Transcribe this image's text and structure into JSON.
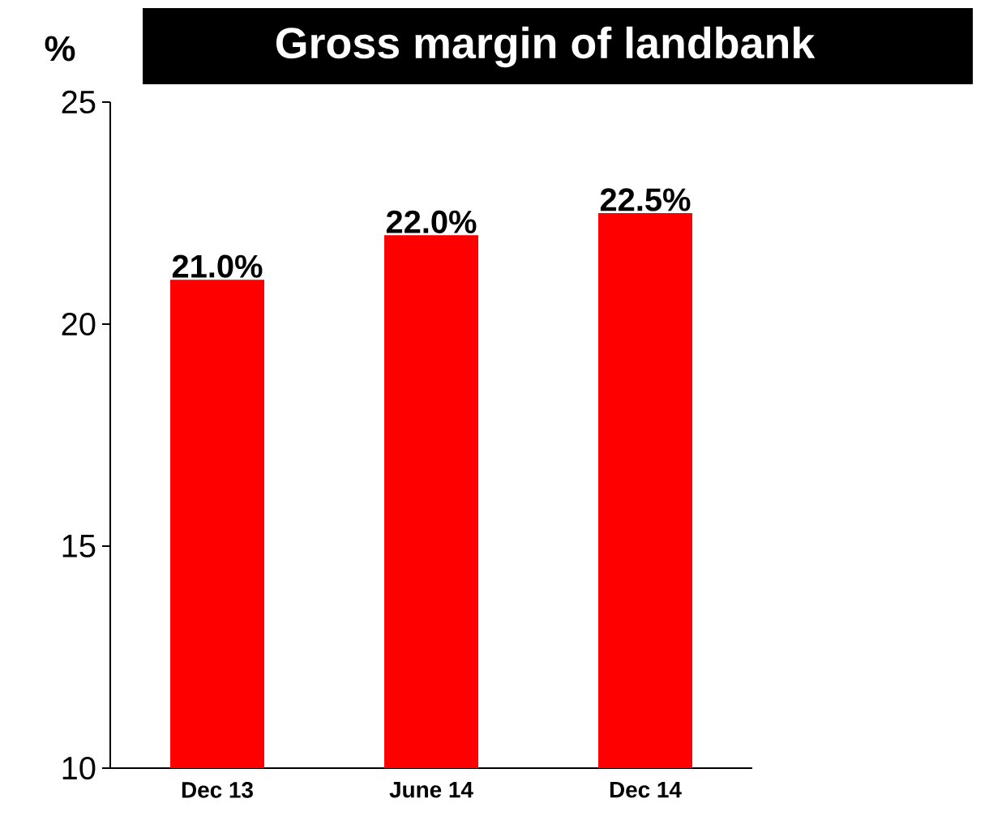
{
  "chart_data": {
    "type": "bar",
    "title": "Gross margin of landbank",
    "ylabel": "%",
    "categories": [
      "Dec 13",
      "June 14",
      "Dec 14"
    ],
    "values": [
      21.0,
      22.0,
      22.5
    ],
    "value_labels": [
      "21.0%",
      "22.0%",
      "22.5%"
    ],
    "color": "#ff0000",
    "ylim": [
      10,
      25
    ],
    "yticks": [
      10,
      15,
      20,
      25
    ],
    "grid": false
  }
}
